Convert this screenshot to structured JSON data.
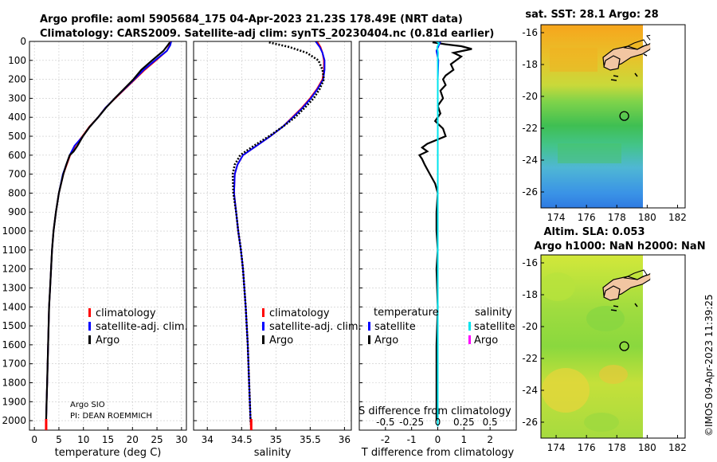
{
  "title": {
    "line1": "Argo profile: aoml 5905684_175 04-Apr-2023 21.23S 178.49E (NRT data)",
    "line2": "Climatology: CARS2009. Satellite-adj clim: synTS_20230404.nc (0.81d earlier)"
  },
  "colors": {
    "climatology": "#ff0000",
    "satellite": "#0000ff",
    "argo": "#000000",
    "sat_temp": "#0000ff",
    "sat_sal": "#00e5ee",
    "argo_sal": "#ff00ff"
  },
  "credit": {
    "line1": "Argo SIO",
    "line2": "PI: DEAN ROEMMICH"
  },
  "watermark": "©IMOS 09-Apr-2023 11:39:25",
  "chart_data": [
    {
      "type": "line",
      "id": "temperature",
      "xlabel": "temperature (deg C)",
      "xlim": [
        -1,
        31
      ],
      "ylim": [
        2050,
        0
      ],
      "xticks": [
        "0",
        "5",
        "10",
        "15",
        "20",
        "25",
        "30"
      ],
      "xtick_values": [
        0,
        5,
        10,
        15,
        20,
        25,
        30
      ],
      "yticks": [
        "0",
        "100",
        "200",
        "300",
        "400",
        "500",
        "600",
        "700",
        "800",
        "900",
        "1000",
        "1100",
        "1200",
        "1300",
        "1400",
        "1500",
        "1600",
        "1700",
        "1800",
        "1900",
        "2000"
      ],
      "ytick_values": [
        0,
        100,
        200,
        300,
        400,
        500,
        600,
        700,
        800,
        900,
        1000,
        1100,
        1200,
        1300,
        1400,
        1500,
        1600,
        1700,
        1800,
        1900,
        2000
      ],
      "legend": [
        "climatology",
        "satellite-adj. clim.",
        "Argo"
      ],
      "series": [
        {
          "name": "climatology",
          "depth": [
            0,
            20,
            50,
            100,
            150,
            200,
            250,
            300,
            350,
            400,
            450,
            500,
            550,
            600,
            650,
            700,
            800,
            900,
            1000,
            1100,
            1200,
            1300,
            1400,
            1500,
            1600,
            1700,
            1800,
            1900,
            2000,
            2030
          ],
          "values": [
            27.8,
            27.6,
            27.0,
            24.8,
            22.5,
            20.5,
            18.5,
            16.5,
            14.5,
            13.0,
            11.2,
            9.8,
            8.3,
            7.3,
            6.6,
            5.9,
            5.0,
            4.4,
            3.9,
            3.6,
            3.4,
            3.2,
            3.0,
            2.9,
            2.8,
            2.7,
            2.6,
            2.5,
            2.4,
            2.4
          ]
        },
        {
          "name": "satellite-adj. clim.",
          "depth": [
            0,
            20,
            50,
            100,
            150,
            200,
            250,
            300,
            350,
            400,
            450,
            500,
            550,
            600,
            650,
            700,
            800,
            900,
            1000,
            1100,
            1200,
            1300,
            1400,
            1500,
            1600,
            1700,
            1800,
            1900,
            2000,
            2030
          ],
          "values": [
            27.9,
            27.7,
            27.0,
            24.6,
            22.3,
            20.4,
            18.4,
            16.4,
            14.5,
            13.0,
            11.3,
            9.9,
            8.2,
            7.2,
            6.5,
            5.8,
            5.0,
            4.4,
            3.9,
            3.6,
            3.4,
            3.2,
            3.0,
            2.9,
            2.8,
            2.7,
            2.6,
            2.5,
            2.4,
            2.4
          ]
        },
        {
          "name": "Argo",
          "depth": [
            5,
            20,
            50,
            100,
            150,
            200,
            250,
            300,
            350,
            400,
            450,
            500,
            550,
            580,
            600,
            650,
            700,
            800,
            900,
            1000,
            1100,
            1200,
            1300,
            1400,
            1500,
            1600,
            1700,
            1800,
            1900,
            2000,
            2030
          ],
          "values": [
            27.6,
            27.2,
            26.3,
            24.0,
            21.8,
            20.2,
            18.3,
            16.4,
            14.6,
            13.0,
            11.3,
            9.9,
            8.8,
            8.0,
            7.2,
            6.5,
            5.9,
            5.0,
            4.4,
            3.9,
            3.6,
            3.4,
            3.2,
            3.0,
            2.9,
            2.8,
            2.7,
            2.6,
            2.5,
            2.4,
            2.4
          ]
        }
      ]
    },
    {
      "type": "line",
      "id": "salinity",
      "xlabel": "salinity",
      "xlim": [
        33.8,
        36.1
      ],
      "ylim": [
        2050,
        0
      ],
      "xticks": [
        "34",
        "34.5",
        "35",
        "35.5",
        "36"
      ],
      "xtick_values": [
        34,
        34.5,
        35,
        35.5,
        36
      ],
      "legend": [
        "climatology",
        "satellite-adj. clim.",
        "Argo"
      ],
      "series": [
        {
          "name": "climatology",
          "depth": [
            0,
            30,
            60,
            100,
            150,
            200,
            250,
            300,
            350,
            400,
            450,
            500,
            550,
            600,
            650,
            700,
            800,
            900,
            1000,
            1100,
            1200,
            1400,
            1600,
            1800,
            2000,
            2030
          ],
          "values": [
            35.6,
            35.65,
            35.68,
            35.7,
            35.7,
            35.68,
            35.6,
            35.5,
            35.38,
            35.24,
            35.1,
            34.92,
            34.72,
            34.52,
            34.44,
            34.4,
            34.39,
            34.42,
            34.45,
            34.49,
            34.52,
            34.56,
            34.59,
            34.61,
            34.63,
            34.64
          ]
        },
        {
          "name": "satellite-adj. clim.",
          "depth": [
            0,
            30,
            60,
            100,
            150,
            200,
            250,
            300,
            350,
            400,
            450,
            500,
            550,
            600,
            650,
            700,
            800,
            900,
            1000,
            1100,
            1200,
            1400,
            1600,
            1800,
            2000,
            2030
          ],
          "values": [
            35.58,
            35.64,
            35.68,
            35.71,
            35.71,
            35.69,
            35.61,
            35.51,
            35.39,
            35.25,
            35.1,
            34.92,
            34.72,
            34.52,
            34.44,
            34.4,
            34.39,
            34.42,
            34.45,
            34.49,
            34.52,
            34.56,
            34.59,
            34.61,
            34.63,
            34.64
          ]
        },
        {
          "name": "Argo",
          "depth": [
            5,
            30,
            60,
            100,
            150,
            200,
            250,
            300,
            350,
            400,
            450,
            500,
            550,
            600,
            650,
            700,
            800,
            900,
            1000,
            1100,
            1200,
            1400,
            1600,
            1800,
            2000,
            2030
          ],
          "values": [
            34.9,
            35.2,
            35.45,
            35.62,
            35.68,
            35.7,
            35.64,
            35.55,
            35.42,
            35.28,
            35.1,
            34.9,
            34.68,
            34.48,
            34.4,
            34.37,
            34.38,
            34.42,
            34.45,
            34.49,
            34.52,
            34.56,
            34.59,
            34.61,
            34.63,
            34.64
          ]
        }
      ]
    },
    {
      "type": "line",
      "id": "difference",
      "xlabel": "T difference from climatology",
      "xlim": [
        -3,
        3
      ],
      "ylim": [
        2050,
        0
      ],
      "xticks": [
        "-2",
        "-1",
        "0",
        "1",
        "2"
      ],
      "xtick_values": [
        -2,
        -1,
        0,
        1,
        2
      ],
      "x2label": "S difference from climatology",
      "x2ticks": [
        "-0.5",
        "-0.25",
        "0",
        "0.25",
        "0.5"
      ],
      "x2tick_values": [
        -0.5,
        -0.25,
        0,
        0.25,
        0.5
      ],
      "x2lim": [
        -0.75,
        0.75
      ],
      "legend": {
        "temperature_header": "temperature",
        "salinity_header": "salinity",
        "items": [
          "satellite",
          "Argo",
          "satellite",
          "Argo"
        ]
      },
      "series": [
        {
          "name": "temperature Argo",
          "depth": [
            5,
            15,
            25,
            40,
            60,
            80,
            100,
            120,
            150,
            180,
            200,
            230,
            260,
            300,
            340,
            380,
            420,
            460,
            500,
            540,
            560,
            580,
            600,
            620,
            650,
            700,
            750,
            800,
            900,
            1000,
            1100,
            1200,
            1400,
            1600,
            1800,
            2000
          ],
          "values": [
            -0.2,
            0.3,
            0.9,
            1.3,
            0.6,
            0.9,
            0.7,
            0.5,
            0.6,
            0.3,
            0.2,
            0.3,
            0.1,
            0.2,
            0.0,
            0.1,
            -0.1,
            0.2,
            0.3,
            -0.4,
            -0.6,
            -0.4,
            -0.7,
            -0.6,
            -0.5,
            -0.3,
            -0.1,
            0.0,
            -0.05,
            -0.05,
            0.0,
            -0.05,
            0.0,
            -0.05,
            -0.05,
            -0.05
          ]
        },
        {
          "name": "temperature satellite",
          "depth": [
            0,
            50,
            100,
            200,
            400,
            600,
            800,
            1000,
            1500,
            2030
          ],
          "values": [
            0.1,
            -0.05,
            0.02,
            0.0,
            0.0,
            0.0,
            0.0,
            0.0,
            0.0,
            0.0
          ]
        },
        {
          "name": "salinity satellite",
          "depth": [
            0,
            10,
            30,
            60,
            100,
            200,
            400,
            600,
            1000,
            2030
          ],
          "values": [
            -0.05,
            0.05,
            -0.02,
            0.01,
            0.0,
            0.0,
            0.0,
            0.0,
            0.0,
            0.0
          ]
        }
      ]
    },
    {
      "type": "heatmap",
      "id": "sst_map",
      "title": "sat. SST: 28.1 Argo: 28",
      "xlim": [
        173,
        182.5
      ],
      "ylim": [
        -27,
        -15.5
      ],
      "xticks": [
        "174",
        "176",
        "178",
        "180",
        "182"
      ],
      "xtick_values": [
        174,
        176,
        178,
        180,
        182
      ],
      "yticks": [
        "-16",
        "-18",
        "-20",
        "-22",
        "-24",
        "-26"
      ],
      "ytick_values": [
        -16,
        -18,
        -20,
        -22,
        -24,
        -26
      ],
      "argo_position": {
        "lon": 178.49,
        "lat": -21.23
      },
      "data_east_limit": 180.2
    },
    {
      "type": "heatmap",
      "id": "sla_map",
      "title": "Altim. SLA: 0.053",
      "subtitle": "Argo h1000: NaN h2000: NaN",
      "xlim": [
        173,
        182.5
      ],
      "ylim": [
        -27,
        -15.5
      ],
      "xticks": [
        "174",
        "176",
        "178",
        "180",
        "182"
      ],
      "xtick_values": [
        174,
        176,
        178,
        180,
        182
      ],
      "yticks": [
        "-16",
        "-18",
        "-20",
        "-22",
        "-24",
        "-26"
      ],
      "ytick_values": [
        -16,
        -18,
        -20,
        -22,
        -24,
        -26
      ],
      "argo_position": {
        "lon": 178.49,
        "lat": -21.23
      },
      "data_east_limit": 180.2
    }
  ]
}
